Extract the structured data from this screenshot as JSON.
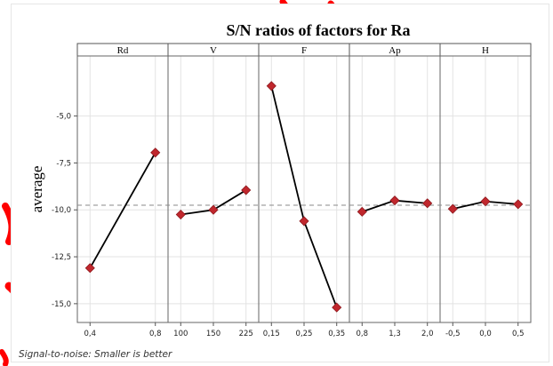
{
  "chart_data": {
    "type": "line",
    "title": "S/N ratios of factors for Ra",
    "ylabel": "average",
    "footnote": "Signal-to-noise: Smaller is better",
    "ylim": [
      -16.0,
      -1.8
    ],
    "yticks": [
      -5.0,
      -7.5,
      -10.0,
      -12.5,
      -15.0
    ],
    "ytick_labels": [
      "-5,0",
      "-7,5",
      "-10,0",
      "-12,5",
      "-15,0"
    ],
    "reference_line": -9.75,
    "grid": true,
    "colors": {
      "line": "#000000",
      "marker": "#c0272d",
      "marker_edge": "#8e1a1f",
      "grid": "#e3e3e3",
      "reference": "#8a8a8a",
      "panel_header": "#ffffff",
      "annotation": "#ff0000"
    },
    "panels": [
      {
        "name": "Rd",
        "categories": [
          "0,4",
          "0,8"
        ],
        "values": [
          -13.1,
          -6.95
        ]
      },
      {
        "name": "V",
        "categories": [
          "100",
          "150",
          "225"
        ],
        "values": [
          -10.25,
          -10.0,
          -8.95
        ]
      },
      {
        "name": "F",
        "categories": [
          "0,15",
          "0,25",
          "0,35"
        ],
        "values": [
          -3.4,
          -10.6,
          -15.2
        ]
      },
      {
        "name": "Ap",
        "categories": [
          "0,8",
          "1,3",
          "2,0"
        ],
        "values": [
          -10.1,
          -9.5,
          -9.65
        ]
      },
      {
        "name": "H",
        "categories": [
          "-0,5",
          "0,0",
          "0,5"
        ],
        "values": [
          -9.95,
          -9.55,
          -9.7
        ]
      }
    ]
  }
}
